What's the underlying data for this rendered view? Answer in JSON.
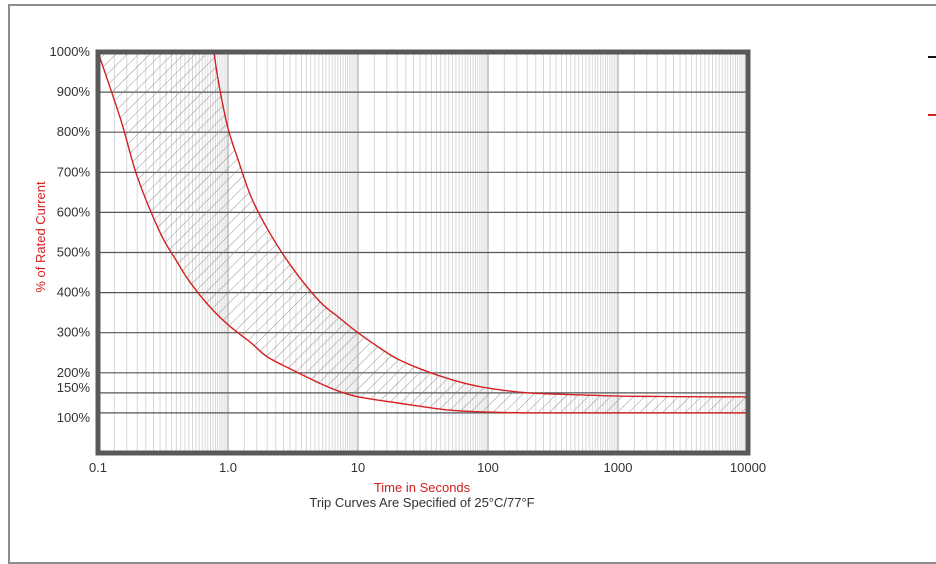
{
  "chart_data": {
    "type": "line",
    "title": "",
    "xlabel": "Time in Seconds",
    "ylabel": "% of Rated Current",
    "note": "Trip Curves Are Specified of 25°C/77°F",
    "x_scale": "log",
    "xlim": [
      0.1,
      10000
    ],
    "ylim": [
      0,
      1000
    ],
    "x_ticks": [
      "0.1",
      "1.0",
      "10",
      "100",
      "1000",
      "10000"
    ],
    "x_tick_values": [
      0.1,
      1,
      10,
      100,
      1000,
      10000
    ],
    "y_ticks": [
      "100%",
      "150%",
      "200%",
      "300%",
      "400%",
      "500%",
      "600%",
      "700%",
      "800%",
      "900%",
      "1000%"
    ],
    "y_tick_values": [
      100,
      150,
      200,
      300,
      400,
      500,
      600,
      700,
      800,
      900,
      1000
    ],
    "grid": true,
    "series": [
      {
        "color": "#d42020",
        "x": [
          0.1,
          0.15,
          0.2,
          0.3,
          0.4,
          0.5,
          0.7,
          1,
          1.5,
          2,
          3,
          5,
          7,
          10,
          20,
          50,
          100,
          200,
          500,
          1000,
          10000
        ],
        "y": [
          1000,
          830,
          690,
          550,
          480,
          430,
          370,
          320,
          275,
          240,
          210,
          175,
          155,
          140,
          125,
          107,
          102,
          100,
          100,
          100,
          100
        ]
      },
      {
        "color": "#d42020",
        "x": [
          0.78,
          0.85,
          1,
          1.2,
          1.5,
          2,
          3,
          5,
          7,
          10,
          15,
          20,
          30,
          50,
          70,
          100,
          200,
          500,
          1000,
          2000,
          5000,
          10000
        ],
        "y": [
          1000,
          920,
          810,
          730,
          640,
          560,
          470,
          380,
          340,
          300,
          260,
          235,
          210,
          185,
          172,
          162,
          150,
          145,
          142,
          141,
          140,
          140
        ]
      }
    ]
  },
  "legend_marks": [
    {
      "color": "#111111"
    },
    {
      "color": "#d42020"
    }
  ]
}
